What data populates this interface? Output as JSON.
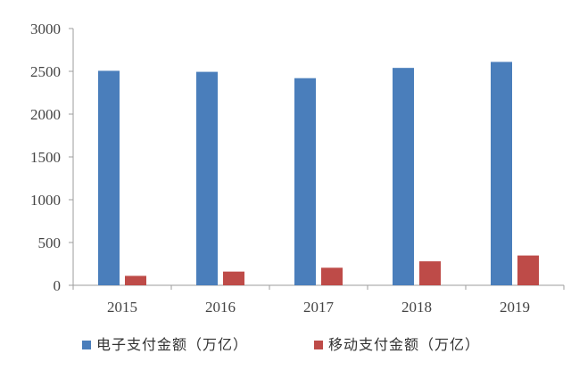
{
  "chart_data": {
    "type": "bar",
    "categories": [
      "2015",
      "2016",
      "2017",
      "2018",
      "2019"
    ],
    "series": [
      {
        "name": "电子支付金额（万亿）",
        "color": "#4a7ebb",
        "values": [
          2506,
          2494,
          2420,
          2540,
          2610
        ]
      },
      {
        "name": "移动支付金额（万亿）",
        "color": "#be4b48",
        "values": [
          110,
          160,
          205,
          280,
          348
        ]
      }
    ],
    "ylim": [
      0,
      3000
    ],
    "yticks": [
      0,
      500,
      1000,
      1500,
      2000,
      2500,
      3000
    ],
    "xlabel": "",
    "ylabel": "",
    "title": "",
    "grid": false,
    "legend_position": "bottom"
  }
}
